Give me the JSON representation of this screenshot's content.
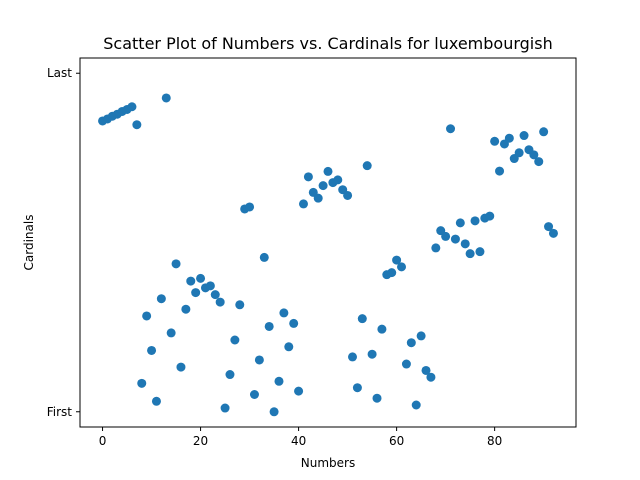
{
  "chart_data": {
    "type": "scatter",
    "title": "Scatter Plot of Numbers vs. Cardinals for luxembourgish",
    "xlabel": "Numbers",
    "ylabel": "Cardinals",
    "xlim": [
      -4.6,
      96.6
    ],
    "ylim": [
      -0.045,
      1.045
    ],
    "xticks": [
      0,
      20,
      40,
      60,
      80
    ],
    "yticks": [
      {
        "value": 0,
        "label": "First"
      },
      {
        "value": 1,
        "label": "Last"
      }
    ],
    "marker_color": "#1f77b4",
    "grid": false,
    "x": [
      0,
      1,
      2,
      3,
      4,
      5,
      6,
      7,
      8,
      9,
      10,
      11,
      12,
      13,
      14,
      15,
      16,
      17,
      18,
      19,
      20,
      21,
      22,
      23,
      24,
      25,
      26,
      27,
      28,
      29,
      30,
      31,
      32,
      33,
      34,
      35,
      36,
      37,
      38,
      39,
      40,
      41,
      42,
      43,
      44,
      45,
      46,
      47,
      48,
      49,
      50,
      51,
      52,
      53,
      54,
      55,
      56,
      57,
      58,
      59,
      60,
      61,
      62,
      63,
      64,
      65,
      66,
      67,
      68,
      69,
      70,
      71,
      72,
      73,
      74,
      75,
      76,
      77,
      78,
      79,
      80,
      81,
      82,
      83,
      84,
      85,
      86,
      87,
      88,
      89,
      90,
      91,
      92
    ],
    "y": [
      0.859,
      0.865,
      0.873,
      0.879,
      0.887,
      0.893,
      0.901,
      0.848,
      0.084,
      0.283,
      0.181,
      0.031,
      0.334,
      0.927,
      0.233,
      0.437,
      0.132,
      0.303,
      0.386,
      0.352,
      0.394,
      0.366,
      0.372,
      0.346,
      0.324,
      0.011,
      0.11,
      0.212,
      0.316,
      0.599,
      0.605,
      0.051,
      0.153,
      0.456,
      0.252,
      0.0,
      0.09,
      0.292,
      0.192,
      0.261,
      0.061,
      0.614,
      0.694,
      0.648,
      0.631,
      0.668,
      0.71,
      0.677,
      0.685,
      0.656,
      0.639,
      0.162,
      0.071,
      0.275,
      0.727,
      0.17,
      0.04,
      0.244,
      0.405,
      0.411,
      0.448,
      0.428,
      0.141,
      0.204,
      0.02,
      0.224,
      0.122,
      0.102,
      0.484,
      0.535,
      0.518,
      0.836,
      0.51,
      0.558,
      0.496,
      0.467,
      0.564,
      0.473,
      0.572,
      0.578,
      0.799,
      0.711,
      0.791,
      0.808,
      0.748,
      0.765,
      0.816,
      0.774,
      0.759,
      0.739,
      0.827,
      0.547,
      0.527
    ]
  }
}
